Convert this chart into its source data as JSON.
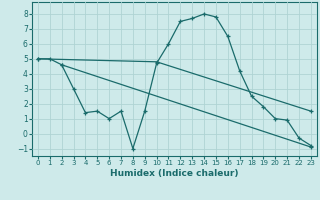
{
  "xlabel": "Humidex (Indice chaleur)",
  "ylabel": "",
  "bg_color": "#ceeaea",
  "line_color": "#1a6b6b",
  "grid_color": "#afd4d4",
  "xlim": [
    -0.5,
    23.5
  ],
  "ylim": [
    -1.5,
    8.8
  ],
  "yticks": [
    -1,
    0,
    1,
    2,
    3,
    4,
    5,
    6,
    7,
    8
  ],
  "xticks": [
    0,
    1,
    2,
    3,
    4,
    5,
    6,
    7,
    8,
    9,
    10,
    11,
    12,
    13,
    14,
    15,
    16,
    17,
    18,
    19,
    20,
    21,
    22,
    23
  ],
  "series1_x": [
    0,
    1,
    2,
    3,
    4,
    5,
    6,
    7,
    8,
    9,
    10,
    11,
    12,
    13,
    14,
    15,
    16,
    17,
    18,
    19,
    20,
    21,
    22,
    23
  ],
  "series1_y": [
    5.0,
    5.0,
    4.6,
    3.0,
    1.4,
    1.5,
    1.0,
    1.5,
    -1.0,
    1.5,
    4.7,
    6.0,
    7.5,
    7.7,
    8.0,
    7.8,
    6.5,
    4.2,
    2.5,
    1.8,
    1.0,
    0.9,
    -0.3,
    -0.8
  ],
  "series2_x": [
    0,
    10,
    23
  ],
  "series2_y": [
    5.0,
    4.8,
    1.5
  ],
  "series3_x": [
    2,
    23
  ],
  "series3_y": [
    4.6,
    -0.9
  ]
}
